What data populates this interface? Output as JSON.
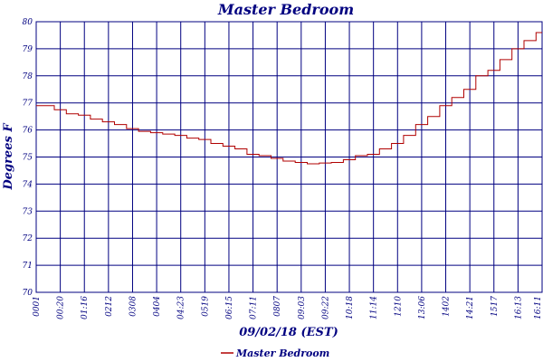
{
  "chart_data": {
    "type": "line",
    "title": "Master Bedroom",
    "xlabel": "09/02/18 (EST)",
    "ylabel": "Degrees F",
    "ylim": [
      70,
      80
    ],
    "yticks": [
      "70",
      "71",
      "72",
      "73",
      "74",
      "75",
      "76",
      "77",
      "78",
      "79",
      "80"
    ],
    "xticks": [
      "0001",
      "00:20",
      "01:16",
      "0212",
      "0308",
      "0404",
      "04:23",
      "0519",
      "06:15",
      "07:11",
      "0807",
      "09:03",
      "09:22",
      "10:18",
      "11:14",
      "1210",
      "13:06",
      "1402",
      "14:21",
      "1517",
      "16:13",
      "16:11"
    ],
    "grid": true,
    "legend_position": "bottom-center",
    "colors": {
      "line": "#b00000",
      "grid": "#000080",
      "text": "#000080"
    },
    "series": [
      {
        "name": "Master Bedroom",
        "x": [
          0,
          0.5,
          1,
          1.5,
          2,
          2.5,
          3,
          3.5,
          4,
          4.5,
          5,
          5.5,
          6,
          6.5,
          7,
          7.5,
          8,
          8.5,
          9,
          9.5,
          10,
          10.5,
          11,
          11.5,
          12,
          12.5,
          13,
          13.5,
          14,
          14.5,
          15,
          15.5,
          16,
          16.5,
          17,
          17.5,
          18,
          18.5,
          19,
          19.5,
          20,
          20.5,
          21
        ],
        "values": [
          76.9,
          76.9,
          76.75,
          76.6,
          76.55,
          76.4,
          76.3,
          76.2,
          76.05,
          75.95,
          75.9,
          75.85,
          75.8,
          75.7,
          75.65,
          75.5,
          75.4,
          75.3,
          75.1,
          75.05,
          74.95,
          74.85,
          74.8,
          74.75,
          74.78,
          74.8,
          74.9,
          75.05,
          75.1,
          75.3,
          75.5,
          75.8,
          76.2,
          76.5,
          76.9,
          77.2,
          77.5,
          78.0,
          78.2,
          78.6,
          79.0,
          79.3,
          79.6
        ]
      }
    ]
  }
}
